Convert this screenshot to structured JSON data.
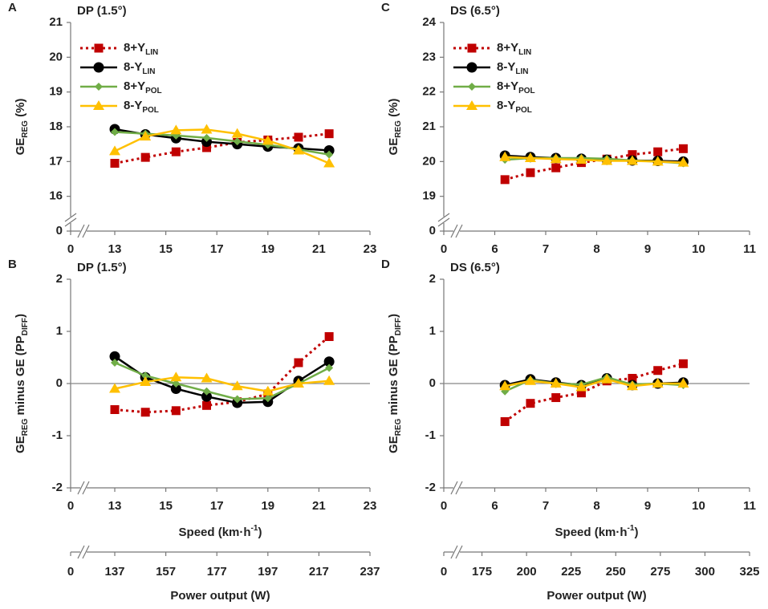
{
  "chart_data": [
    {
      "type": "line",
      "panel": "A",
      "title": "DP (1.5°)",
      "x": [
        13,
        14.2,
        15.4,
        16.6,
        17.8,
        19,
        20.2,
        21.4
      ],
      "xlim": [
        0,
        23
      ],
      "xbreak": [
        0,
        11.27
      ],
      "xticks": [
        0,
        13,
        15,
        17,
        19,
        21,
        23
      ],
      "ylim": [
        0,
        21
      ],
      "ybreak": [
        0,
        15
      ],
      "yticks": [
        0,
        16,
        17,
        18,
        19,
        20,
        21
      ],
      "ylabel": [
        {
          "text": "GE"
        },
        {
          "text": "REG",
          "sub": true
        },
        {
          "text": " (%)"
        }
      ],
      "legend": "upper left",
      "series": [
        {
          "name": [
            {
              "text": "8+Y"
            },
            {
              "text": "LIN",
              "sub": true
            }
          ],
          "color": "#c00000",
          "marker": "square",
          "dash": "dotted",
          "values": [
            16.95,
            17.12,
            17.28,
            17.4,
            17.55,
            17.62,
            17.7,
            17.8
          ]
        },
        {
          "name": [
            {
              "text": "8-Y"
            },
            {
              "text": "LIN",
              "sub": true
            }
          ],
          "color": "#000000",
          "marker": "circle",
          "values": [
            17.93,
            17.78,
            17.67,
            17.57,
            17.5,
            17.43,
            17.38,
            17.32
          ]
        },
        {
          "name": [
            {
              "text": "8+Y"
            },
            {
              "text": "POL",
              "sub": true
            }
          ],
          "color": "#70ad47",
          "marker": "diamond",
          "values": [
            17.85,
            17.8,
            17.75,
            17.68,
            17.58,
            17.48,
            17.35,
            17.2
          ]
        },
        {
          "name": [
            {
              "text": "8-Y"
            },
            {
              "text": "POL",
              "sub": true
            }
          ],
          "color": "#ffc000",
          "marker": "triangle",
          "values": [
            17.3,
            17.72,
            17.9,
            17.92,
            17.8,
            17.6,
            17.32,
            16.95
          ]
        }
      ]
    },
    {
      "type": "line",
      "panel": "B",
      "title": "DP (1.5°)",
      "x": [
        13,
        14.2,
        15.4,
        16.6,
        17.8,
        19,
        20.2,
        21.4
      ],
      "xlim": [
        0,
        23
      ],
      "xbreak": [
        0,
        11.27
      ],
      "xticks": [
        0,
        13,
        15,
        17,
        19,
        21,
        23
      ],
      "ylim": [
        -2,
        2
      ],
      "yticks": [
        -2,
        -1,
        0,
        1,
        2
      ],
      "zero_line": true,
      "ylabel": [
        {
          "text": "GE"
        },
        {
          "text": "REG",
          "sub": true
        },
        {
          "text": " minus GE (PP"
        },
        {
          "text": "DIFF",
          "sub": true
        },
        {
          "text": ")"
        }
      ],
      "xlabel": [
        {
          "text": "Speed (km·h"
        },
        {
          "text": "-1",
          "sup": true
        },
        {
          "text": ")"
        }
      ],
      "x2lim": [
        0,
        237
      ],
      "x2break": [
        0,
        119.7
      ],
      "x2ticks": [
        0,
        137,
        157,
        177,
        197,
        217,
        237
      ],
      "x2label": "Power output (W)",
      "series": [
        {
          "color": "#c00000",
          "marker": "square",
          "dash": "dotted",
          "values": [
            -0.5,
            -0.55,
            -0.52,
            -0.42,
            -0.35,
            -0.2,
            0.4,
            0.9
          ]
        },
        {
          "color": "#000000",
          "marker": "circle",
          "values": [
            0.52,
            0.12,
            -0.1,
            -0.25,
            -0.37,
            -0.35,
            0.05,
            0.42
          ]
        },
        {
          "color": "#70ad47",
          "marker": "diamond",
          "values": [
            0.4,
            0.15,
            0.0,
            -0.15,
            -0.3,
            -0.28,
            0.0,
            0.3
          ]
        },
        {
          "color": "#ffc000",
          "marker": "triangle",
          "values": [
            -0.1,
            0.03,
            0.12,
            0.1,
            -0.05,
            -0.15,
            0.0,
            0.05
          ]
        }
      ]
    },
    {
      "type": "line",
      "panel": "C",
      "title": "DS (6.5°)",
      "x": [
        6.2,
        6.7,
        7.2,
        7.7,
        8.2,
        8.7,
        9.2,
        9.7
      ],
      "xlim": [
        0,
        11
      ],
      "xbreak": [
        0,
        5
      ],
      "xticks": [
        0,
        6,
        7,
        8,
        9,
        10,
        11
      ],
      "ylim": [
        0,
        24
      ],
      "ybreak": [
        0,
        18
      ],
      "yticks": [
        0,
        19,
        20,
        21,
        22,
        23,
        24
      ],
      "ylabel": [
        {
          "text": "GE"
        },
        {
          "text": "REG",
          "sub": true
        },
        {
          "text": " (%)"
        }
      ],
      "legend": "upper left",
      "series": [
        {
          "name": [
            {
              "text": "8+Y"
            },
            {
              "text": "LIN",
              "sub": true
            }
          ],
          "color": "#c00000",
          "marker": "square",
          "dash": "dotted",
          "values": [
            19.48,
            19.68,
            19.82,
            19.97,
            20.07,
            20.2,
            20.28,
            20.37
          ]
        },
        {
          "name": [
            {
              "text": "8-Y"
            },
            {
              "text": "LIN",
              "sub": true
            }
          ],
          "color": "#000000",
          "marker": "circle",
          "values": [
            20.17,
            20.13,
            20.1,
            20.08,
            20.05,
            20.03,
            20.02,
            20.0
          ]
        },
        {
          "name": [
            {
              "text": "8+Y"
            },
            {
              "text": "POL",
              "sub": true
            }
          ],
          "color": "#70ad47",
          "marker": "diamond",
          "values": [
            20.05,
            20.1,
            20.1,
            20.1,
            20.08,
            20.03,
            20.0,
            19.95
          ]
        },
        {
          "name": [
            {
              "text": "8-Y"
            },
            {
              "text": "POL",
              "sub": true
            }
          ],
          "color": "#ffc000",
          "marker": "triangle",
          "values": [
            20.13,
            20.1,
            20.07,
            20.05,
            20.02,
            20.02,
            20.0,
            19.97
          ]
        }
      ]
    },
    {
      "type": "line",
      "panel": "D",
      "title": "DS (6.5°)",
      "x": [
        6.2,
        6.7,
        7.2,
        7.7,
        8.2,
        8.7,
        9.2,
        9.7
      ],
      "xlim": [
        0,
        11
      ],
      "xbreak": [
        0,
        5
      ],
      "xticks": [
        0,
        6,
        7,
        8,
        9,
        10,
        11
      ],
      "ylim": [
        -2,
        2
      ],
      "yticks": [
        -2,
        -1,
        0,
        1,
        2
      ],
      "zero_line": true,
      "ylabel": [
        {
          "text": "GE"
        },
        {
          "text": "REG",
          "sub": true
        },
        {
          "text": " minus GE (PP"
        },
        {
          "text": "DIFF",
          "sub": true
        },
        {
          "text": ")"
        }
      ],
      "xlabel": [
        {
          "text": "Speed (km·h"
        },
        {
          "text": "-1",
          "sup": true
        },
        {
          "text": ")"
        }
      ],
      "x2lim": [
        0,
        325
      ],
      "x2break": [
        0,
        153.6
      ],
      "x2ticks": [
        0,
        175,
        200,
        225,
        250,
        275,
        300,
        325
      ],
      "x2label": "Power output (W)",
      "series": [
        {
          "color": "#c00000",
          "marker": "square",
          "dash": "dotted",
          "values": [
            -0.73,
            -0.38,
            -0.27,
            -0.18,
            0.05,
            0.1,
            0.25,
            0.38
          ]
        },
        {
          "color": "#000000",
          "marker": "circle",
          "values": [
            -0.03,
            0.08,
            0.02,
            -0.03,
            0.1,
            -0.03,
            0.0,
            0.02
          ]
        },
        {
          "color": "#70ad47",
          "marker": "diamond",
          "values": [
            -0.15,
            0.07,
            0.0,
            -0.02,
            0.12,
            -0.02,
            0.0,
            -0.03
          ]
        },
        {
          "color": "#ffc000",
          "marker": "triangle",
          "values": [
            -0.05,
            0.05,
            0.0,
            -0.07,
            0.08,
            -0.05,
            0.0,
            0.0
          ]
        }
      ]
    }
  ]
}
